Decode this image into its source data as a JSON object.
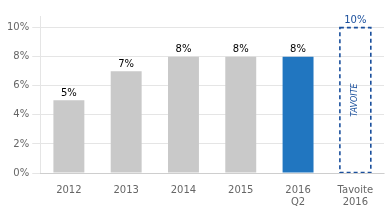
{
  "chart_data": {
    "type": "bar",
    "categories": [
      "2012",
      "2013",
      "2014",
      "2015",
      "2016\nQ2",
      "Tavoite\n2016"
    ],
    "values": [
      5,
      7,
      8,
      8,
      8,
      10
    ],
    "value_labels": [
      "5%",
      "7%",
      "8%",
      "8%",
      "8%",
      "10%"
    ],
    "data_labels": true,
    "colors": [
      "#c9c9c9",
      "#c9c9c9",
      "#c9c9c9",
      "#c9c9c9",
      "#2176c0",
      "#1a4f9c"
    ],
    "ylim": [
      0,
      10.8
    ],
    "yticks": [
      {
        "value": 0,
        "label": "0%"
      },
      {
        "value": 2,
        "label": "2%"
      },
      {
        "value": 4,
        "label": "4%"
      },
      {
        "value": 6,
        "label": "6%"
      },
      {
        "value": 8,
        "label": "8%"
      },
      {
        "value": 10,
        "label": "10%"
      }
    ],
    "grid": true,
    "annotations": [
      {
        "text": "TAVOITE",
        "category": "Tavoite\n2016"
      }
    ]
  }
}
